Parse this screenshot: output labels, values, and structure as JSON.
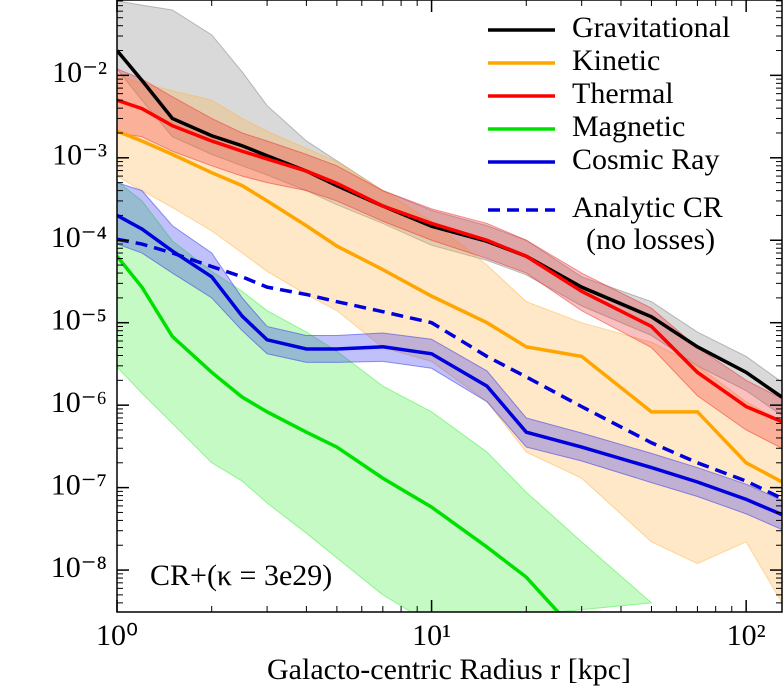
{
  "chart_data": {
    "type": "line",
    "xscale": "log",
    "yscale": "log",
    "xlabel": "Galacto-centric Radius r [kpc]",
    "annotation": "CR+(κ = 3e29)",
    "legend": "upper right",
    "xlim": [
      1,
      130
    ],
    "ylim": [
      3.1e-09,
      0.082
    ],
    "xticks": [
      {
        "value": 1,
        "label": "10⁰"
      },
      {
        "value": 10,
        "label": "10¹"
      },
      {
        "value": 100,
        "label": "10²"
      }
    ],
    "yticks": [
      {
        "value": 1e-08,
        "label": "10⁻⁸"
      },
      {
        "value": 1e-07,
        "label": "10⁻⁷"
      },
      {
        "value": 1e-06,
        "label": "10⁻⁶"
      },
      {
        "value": 1e-05,
        "label": "10⁻⁵"
      },
      {
        "value": 0.0001,
        "label": "10⁻⁴"
      },
      {
        "value": 0.001,
        "label": "10⁻³"
      },
      {
        "value": 0.01,
        "label": "10⁻²"
      }
    ],
    "x": [
      1,
      1.2,
      1.5,
      2,
      2.5,
      3,
      4,
      5,
      7,
      10,
      15,
      20,
      30,
      50,
      70,
      100,
      130
    ],
    "series": [
      {
        "name": "Gravitational",
        "color": "#000000",
        "band_color": "#808080",
        "values": [
          0.02,
          0.0087,
          0.003,
          0.00185,
          0.0014,
          0.00106,
          0.00069,
          0.00046,
          0.00026,
          0.000148,
          9.7e-05,
          6.4e-05,
          2.7e-05,
          1.18e-05,
          5.1e-06,
          2.5e-06,
          1.25e-06
        ],
        "upper": [
          0.08,
          0.071,
          0.062,
          0.031,
          0.011,
          0.0043,
          0.0016,
          0.00092,
          0.0004,
          0.00023,
          0.00015,
          0.0001,
          3.6e-05,
          1.8e-05,
          7.7e-06,
          3.9e-06,
          1.9e-06
        ],
        "lower": [
          0.012,
          0.005,
          0.0018,
          0.0011,
          0.0008,
          0.00062,
          0.0004,
          0.00027,
          0.00016,
          8.7e-05,
          5.7e-05,
          3.8e-05,
          1.6e-05,
          7e-06,
          3e-06,
          1.5e-06,
          7.5e-07
        ]
      },
      {
        "name": "Kinetic",
        "color": "#ffa500",
        "band_color": "#ffb347",
        "values": [
          0.0021,
          0.0016,
          0.0011,
          0.00066,
          0.00046,
          0.0003,
          0.00015,
          8.5e-05,
          4.4e-05,
          2.1e-05,
          1e-05,
          5.1e-06,
          3.9e-06,
          8.3e-07,
          8.3e-07,
          2e-07,
          1.17e-07
        ],
        "upper": [
          0.01,
          0.008,
          0.0065,
          0.005,
          0.003,
          0.0021,
          0.0013,
          0.0009,
          0.0004,
          0.00017,
          5e-05,
          1.8e-05,
          1e-05,
          5.8e-06,
          3e-06,
          1.1e-06,
          6.3e-07
        ],
        "lower": [
          0.0006,
          0.0004,
          0.00025,
          0.00013,
          7e-05,
          4.2e-05,
          2.2e-05,
          1.4e-05,
          5e-06,
          3.4e-06,
          1.1e-06,
          2.7e-07,
          1.3e-07,
          2.2e-08,
          1.2e-08,
          2.2e-08,
          4e-09
        ]
      },
      {
        "name": "Thermal",
        "color": "#ff0000",
        "band_color": "#ee3030",
        "values": [
          0.005,
          0.00395,
          0.00245,
          0.0016,
          0.0012,
          0.00097,
          0.00069,
          0.00049,
          0.00026,
          0.00016,
          0.0001,
          6.4e-05,
          2.4e-05,
          9e-06,
          2.5e-06,
          9.6e-07,
          6.3e-07
        ],
        "upper": [
          0.012,
          0.009,
          0.0055,
          0.003,
          0.002,
          0.0016,
          0.0011,
          0.0008,
          0.0004,
          0.00024,
          0.00016,
          0.0001,
          4e-05,
          1.5e-05,
          5e-06,
          2e-06,
          1.2e-06
        ],
        "lower": [
          0.002,
          0.0018,
          0.0012,
          0.0008,
          0.0006,
          0.0005,
          0.0004,
          0.0003,
          0.00017,
          0.0001,
          6e-05,
          4e-05,
          1.4e-05,
          5e-06,
          1.3e-06,
          5e-07,
          3e-07
        ]
      },
      {
        "name": "Magnetic",
        "color": "#00e000",
        "band_color": "#40f040",
        "values": [
          6.4e-05,
          2.7e-05,
          6.8e-06,
          2.5e-06,
          1.25e-06,
          8.3e-07,
          4.7e-07,
          3.1e-07,
          1.3e-07,
          5.8e-08,
          1.9e-08,
          8.2e-09,
          1.5e-09,
          null,
          null,
          null,
          null
        ],
        "upper": [
          0.00052,
          0.0003,
          9.8e-05,
          4.2e-05,
          2.4e-05,
          1.4e-05,
          7.7e-06,
          4.5e-06,
          1.7e-06,
          8.3e-07,
          2.7e-07,
          8.8e-08,
          2.2e-08,
          4e-09,
          null,
          null,
          null
        ],
        "lower": [
          2.9e-06,
          1.4e-06,
          6e-07,
          2e-07,
          1.2e-07,
          6.5e-08,
          2.8e-08,
          1.4e-08,
          5e-09,
          2.2e-09,
          null,
          null,
          null,
          null,
          null,
          null,
          null
        ]
      },
      {
        "name": "Cosmic Ray",
        "color": "#0000dd",
        "band_color": "#3030ee",
        "values": [
          0.0002,
          0.000137,
          7.4e-05,
          3.6e-05,
          1.2e-05,
          6.2e-06,
          4.8e-06,
          4.8e-06,
          5.1e-06,
          4.2e-06,
          1.7e-06,
          4.7e-07,
          3.1e-07,
          1.75e-07,
          1.17e-07,
          7.2e-08,
          4.7e-08
        ],
        "upper": [
          0.0005,
          0.0004,
          0.00015,
          7e-05,
          2e-05,
          9e-06,
          7e-06,
          7e-06,
          7.5e-06,
          6.3e-06,
          2.6e-06,
          7e-07,
          4.6e-07,
          2.6e-07,
          1.75e-07,
          1.1e-07,
          7e-08
        ],
        "lower": [
          9e-05,
          7e-05,
          4e-05,
          2e-05,
          8e-06,
          4.2e-06,
          3.3e-06,
          3.3e-06,
          3.4e-06,
          2.8e-06,
          1.1e-06,
          3.1e-07,
          2.1e-07,
          1.15e-07,
          7.8e-08,
          4.8e-08,
          3.1e-08
        ]
      },
      {
        "name": "Analytic CR (no losses)",
        "color": "#0000dd",
        "dashed": true,
        "values": [
          0.000103,
          9e-05,
          7e-05,
          4.8e-05,
          3.6e-05,
          2.7e-05,
          2.2e-05,
          1.8e-05,
          1.36e-05,
          1e-05,
          3.9e-06,
          2.2e-06,
          9.6e-07,
          3.5e-07,
          2e-07,
          1.2e-07,
          7.4e-08
        ]
      }
    ]
  }
}
